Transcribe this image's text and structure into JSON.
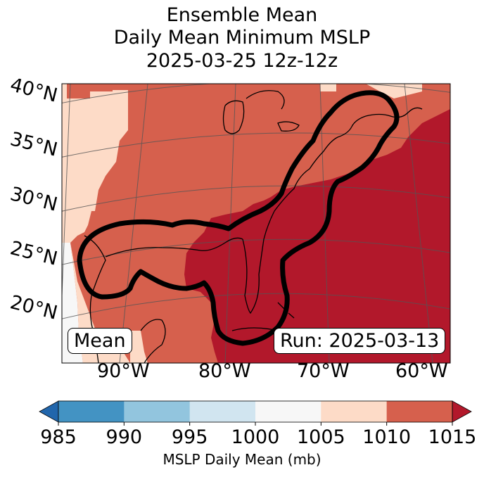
{
  "title": {
    "line1": "Ensemble Mean",
    "line2": "Daily Mean Minimum MSLP",
    "line3": "2025-03-25 12z-12z"
  },
  "map": {
    "lat_labels": [
      "40°N",
      "35°N",
      "30°N",
      "25°N",
      "20°N"
    ],
    "lon_labels": [
      "90°W",
      "80°W",
      "70°W",
      "60°W"
    ],
    "mean_label": "Mean",
    "run_label": "Run: 2025-03-13",
    "colors": {
      "c1000_1005": "#f7f7f7",
      "c1005_1010": "#fddbc7",
      "c1010_1015": "#d6604d",
      "c1015_plus": "#b2182b",
      "contour": "#000000",
      "coast": "#000000",
      "grid": "#555555"
    }
  },
  "colorbar": {
    "label": "MSLP Daily Mean (mb)",
    "ticks": [
      "985",
      "990",
      "995",
      "1000",
      "1005",
      "1010",
      "1015"
    ],
    "colors": [
      "#2166ac",
      "#4393c3",
      "#92c5de",
      "#d1e5f0",
      "#f7f7f7",
      "#fddbc7",
      "#d6604d",
      "#b2182b"
    ],
    "levels": [
      985,
      990,
      995,
      1000,
      1005,
      1010,
      1015
    ]
  }
}
